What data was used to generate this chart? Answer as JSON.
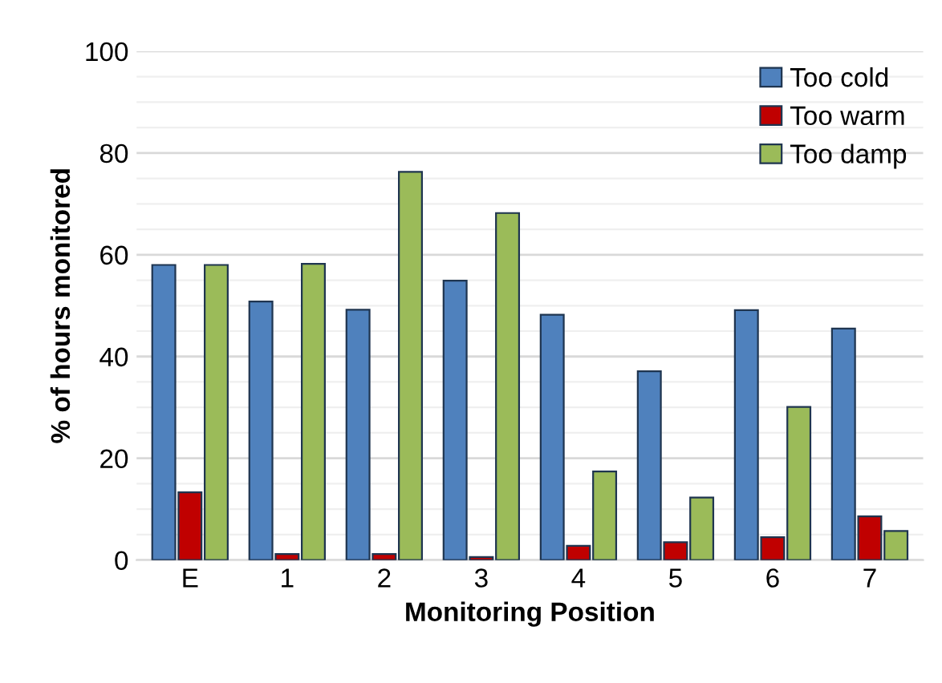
{
  "chart_data": {
    "type": "bar",
    "xlabel": "Monitoring Position",
    "ylabel": "% of hours monitored",
    "categories": [
      "E",
      "1",
      "2",
      "3",
      "4",
      "5",
      "6",
      "7"
    ],
    "series": [
      {
        "name": "Too cold",
        "color": "#4f81bd",
        "values": [
          58.0,
          50.8,
          49.2,
          54.9,
          48.2,
          37.1,
          49.1,
          45.5
        ]
      },
      {
        "name": "Too warm",
        "color": "#c00000",
        "values": [
          13.3,
          1.2,
          1.2,
          0.6,
          2.8,
          3.5,
          4.5,
          8.6
        ]
      },
      {
        "name": "Too damp",
        "color": "#9bbb59",
        "values": [
          58.0,
          58.2,
          76.3,
          68.2,
          17.4,
          12.3,
          30.1,
          5.7
        ]
      }
    ],
    "ylim": [
      0,
      100
    ],
    "yticks": [
      0,
      20,
      40,
      60,
      80,
      100
    ],
    "grid": "y",
    "legend": "top right"
  }
}
